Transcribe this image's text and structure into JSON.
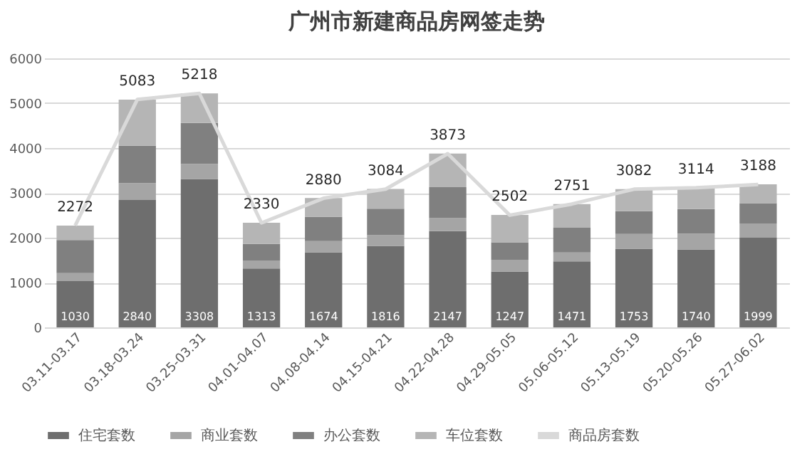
{
  "chart_data": {
    "type": "bar",
    "title": "广州市新建商品房网签走势",
    "stacked": true,
    "categories": [
      "03.11-03.17",
      "03.18-03.24",
      "03.25-03.31",
      "04.01-04.07",
      "04.08-04.14",
      "04.15-04.21",
      "04.22-04.28",
      "04.29-05.05",
      "05.06-05.12",
      "05.13-05.19",
      "05.20-05.26",
      "05.27-06.02"
    ],
    "series": [
      {
        "name": "住宅套数",
        "color": "#6e6e6e",
        "values": [
          1030,
          2840,
          3308,
          1313,
          1674,
          1816,
          2147,
          1247,
          1471,
          1753,
          1740,
          1999
        ],
        "value_labels": [
          "1030",
          "2840",
          "3308",
          "1313",
          "1674",
          "1816",
          "2147",
          "1247",
          "1471",
          "1753",
          "1740",
          "1999"
        ]
      },
      {
        "name": "商业套数",
        "color": "#a5a5a5",
        "values": [
          180,
          380,
          340,
          180,
          250,
          240,
          290,
          260,
          200,
          330,
          350,
          320
        ]
      },
      {
        "name": "办公套数",
        "color": "#808080",
        "values": [
          740,
          830,
          910,
          370,
          540,
          590,
          690,
          390,
          550,
          510,
          550,
          450
        ]
      },
      {
        "name": "车位套数",
        "color": "#b5b5b5",
        "values": [
          320,
          1030,
          660,
          470,
          420,
          440,
          750,
          610,
          530,
          490,
          470,
          420
        ]
      },
      {
        "name": "商品房套数",
        "type": "line",
        "color": "#d9d9d9",
        "values": [
          2272,
          5083,
          5218,
          2330,
          2880,
          3084,
          3873,
          2502,
          2751,
          3082,
          3114,
          3188
        ],
        "value_labels": [
          "2272",
          "5083",
          "5218",
          "2330",
          "2880",
          "3084",
          "3873",
          "2502",
          "2751",
          "3082",
          "3114",
          "3188"
        ]
      }
    ],
    "ylim": [
      0,
      6000
    ],
    "yticks": [
      0,
      1000,
      2000,
      3000,
      4000,
      5000,
      6000
    ],
    "grid": "y",
    "legend": "bottom"
  }
}
